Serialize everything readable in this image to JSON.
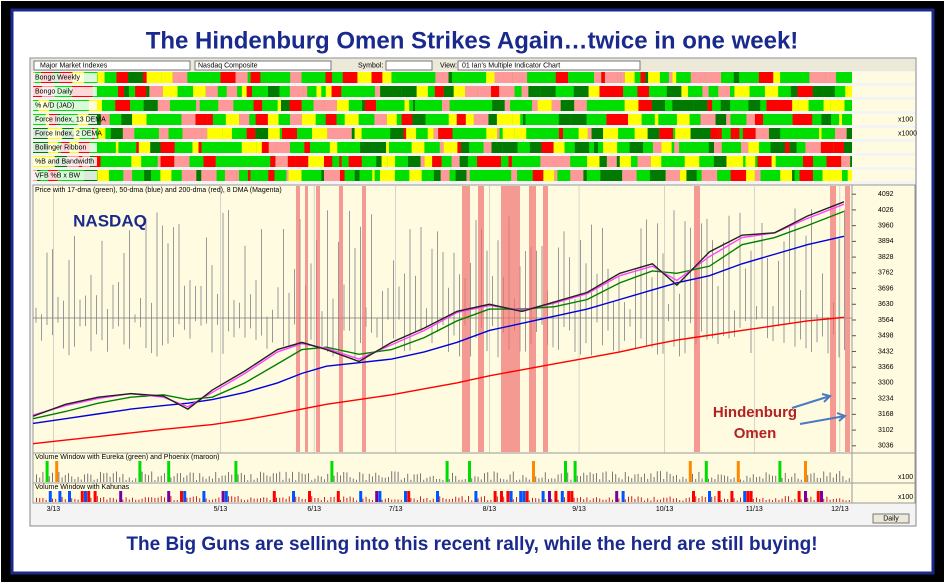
{
  "title": "The Hindenburg Omen Strikes Again…twice in one week!",
  "footer": "The Big Guns are selling into this recent rally, while the herd are still buying!",
  "toolbar": {
    "index_group": "Major Market Indexes",
    "index": "Nasdaq Composite",
    "symbol_label": "Symbol:",
    "view_label": "View:",
    "view": "01 Ian's Multiple Indicator Chart"
  },
  "indicators": [
    {
      "label": "Bongo Weekly"
    },
    {
      "label": "Bongo Daily"
    },
    {
      "label": "% A/D (JAD)"
    },
    {
      "label": "Force Index, 13 DEMA",
      "scale": "x100"
    },
    {
      "label": "Force Index, 2 DEMA",
      "scale": "x1000"
    },
    {
      "label": "Bollinger Ribbon"
    },
    {
      "label": "%B and Bandwidth"
    },
    {
      "label": "VFB %B x BW"
    }
  ],
  "chart_data": {
    "type": "line",
    "title": "Price with 17-dma (green), 50-dma (blue) and 200-dma (red), 8 DMA (Magenta)",
    "annotations": [
      "NASDAQ",
      "Hindenburg",
      "Omen"
    ],
    "x": [
      0,
      8,
      16,
      24,
      32,
      38,
      44,
      52,
      60,
      66,
      72,
      80,
      88,
      96,
      104,
      112,
      120,
      128,
      136,
      144,
      152,
      158,
      166,
      174,
      182,
      190,
      199
    ],
    "series": [
      {
        "color": "#ff0000",
        "values": [
          3045,
          3060,
          3075,
          3090,
          3105,
          3115,
          3125,
          3145,
          3170,
          3190,
          3210,
          3230,
          3250,
          3275,
          3300,
          3330,
          3355,
          3380,
          3405,
          3430,
          3460,
          3480,
          3500,
          3520,
          3540,
          3560,
          3575
        ]
      },
      {
        "color": "#0000dd",
        "values": [
          3130,
          3150,
          3170,
          3190,
          3205,
          3215,
          3230,
          3260,
          3300,
          3340,
          3370,
          3385,
          3400,
          3430,
          3470,
          3520,
          3550,
          3580,
          3610,
          3650,
          3690,
          3720,
          3750,
          3800,
          3840,
          3880,
          3915
        ]
      },
      {
        "color": "#008000",
        "values": [
          3150,
          3180,
          3215,
          3240,
          3250,
          3230,
          3240,
          3300,
          3380,
          3440,
          3450,
          3420,
          3440,
          3490,
          3560,
          3610,
          3610,
          3620,
          3650,
          3720,
          3770,
          3760,
          3790,
          3880,
          3910,
          3960,
          4020
        ]
      },
      {
        "color": "#ff44ff",
        "values": [
          3165,
          3205,
          3235,
          3255,
          3240,
          3200,
          3260,
          3340,
          3430,
          3465,
          3445,
          3400,
          3460,
          3520,
          3595,
          3625,
          3605,
          3635,
          3675,
          3750,
          3790,
          3730,
          3830,
          3910,
          3930,
          3990,
          4050
        ]
      },
      {
        "color": "#222222",
        "values": [
          3160,
          3210,
          3240,
          3255,
          3245,
          3190,
          3270,
          3350,
          3440,
          3470,
          3440,
          3390,
          3470,
          3530,
          3600,
          3630,
          3600,
          3640,
          3680,
          3760,
          3800,
          3710,
          3850,
          3920,
          3930,
          4000,
          4060
        ]
      }
    ],
    "xlim": [
      0,
      200
    ],
    "xticks": [
      {
        "value": 5,
        "label": "3/13"
      },
      {
        "value": 46,
        "label": "5/13"
      },
      {
        "value": 69,
        "label": "6/13"
      },
      {
        "value": 89,
        "label": "7/13"
      },
      {
        "value": 112,
        "label": "8/13"
      },
      {
        "value": 134,
        "label": "9/13"
      },
      {
        "value": 155,
        "label": "10/13"
      },
      {
        "value": 177,
        "label": "11/13"
      },
      {
        "value": 198,
        "label": "12/13"
      }
    ],
    "ylim": [
      3010,
      4118
    ],
    "yticks": [
      4092,
      4026,
      3960,
      3894,
      3828,
      3762,
      3696,
      3630,
      3564,
      3498,
      3432,
      3366,
      3300,
      3234,
      3168,
      3102,
      3036
    ]
  },
  "volume_panels": [
    {
      "title": "Volume Window with Eureka (green) and Phoenix (maroon)",
      "scale": "x100"
    },
    {
      "title": "Volume Window with Kahunas",
      "scale": "x100"
    }
  ],
  "daily_button": "Daily"
}
